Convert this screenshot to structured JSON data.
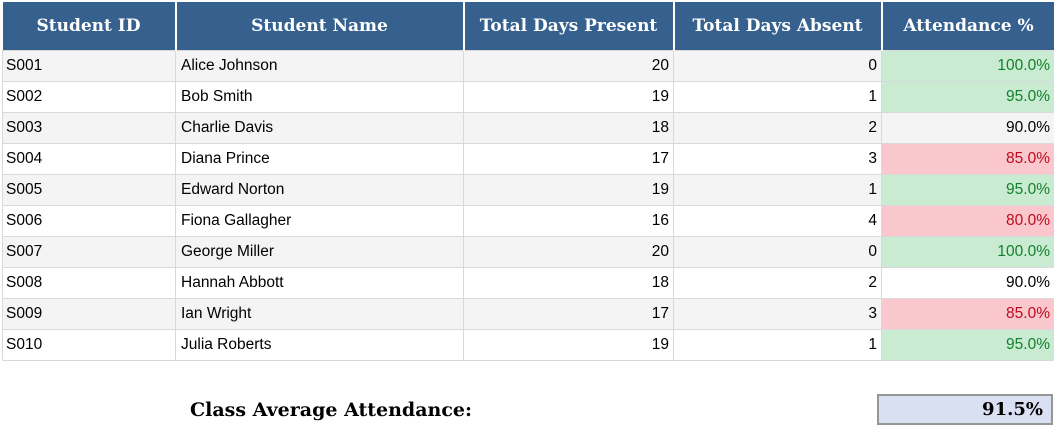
{
  "table": {
    "columns": [
      {
        "id": "student_id",
        "label": "Student ID"
      },
      {
        "id": "student_name",
        "label": "Student Name"
      },
      {
        "id": "days_present",
        "label": "Total Days Present"
      },
      {
        "id": "days_absent",
        "label": "Total Days Absent"
      },
      {
        "id": "attendance_pct",
        "label": "Attendance %"
      }
    ],
    "rows": [
      {
        "student_id": "S001",
        "student_name": "Alice Johnson",
        "days_present": "20",
        "days_absent": "0",
        "attendance_pct": "100.0%"
      },
      {
        "student_id": "S002",
        "student_name": "Bob Smith",
        "days_present": "19",
        "days_absent": "1",
        "attendance_pct": "95.0%"
      },
      {
        "student_id": "S003",
        "student_name": "Charlie Davis",
        "days_present": "18",
        "days_absent": "2",
        "attendance_pct": "90.0%"
      },
      {
        "student_id": "S004",
        "student_name": "Diana Prince",
        "days_present": "17",
        "days_absent": "3",
        "attendance_pct": "85.0%"
      },
      {
        "student_id": "S005",
        "student_name": "Edward Norton",
        "days_present": "19",
        "days_absent": "1",
        "attendance_pct": "95.0%"
      },
      {
        "student_id": "S006",
        "student_name": "Fiona Gallagher",
        "days_present": "16",
        "days_absent": "4",
        "attendance_pct": "80.0%"
      },
      {
        "student_id": "S007",
        "student_name": "George Miller",
        "days_present": "20",
        "days_absent": "0",
        "attendance_pct": "100.0%"
      },
      {
        "student_id": "S008",
        "student_name": "Hannah Abbott",
        "days_present": "18",
        "days_absent": "2",
        "attendance_pct": "90.0%"
      },
      {
        "student_id": "S009",
        "student_name": "Ian Wright",
        "days_present": "17",
        "days_absent": "3",
        "attendance_pct": "85.0%"
      },
      {
        "student_id": "S010",
        "student_name": "Julia Roberts",
        "days_present": "19",
        "days_absent": "1",
        "attendance_pct": "95.0%"
      }
    ]
  },
  "conditional_format": {
    "good_min": 95,
    "bad_max": 85
  },
  "summary": {
    "label": "Class Average Attendance:",
    "value": "91.5%"
  },
  "colors": {
    "header_bg": "#36618F",
    "good_bg": "#C9EBD2",
    "good_text": "#15802C",
    "bad_bg": "#FAC7CD",
    "bad_text": "#BE0A1E",
    "summary_bg": "#D9E0F2",
    "summary_border": "#969696"
  }
}
